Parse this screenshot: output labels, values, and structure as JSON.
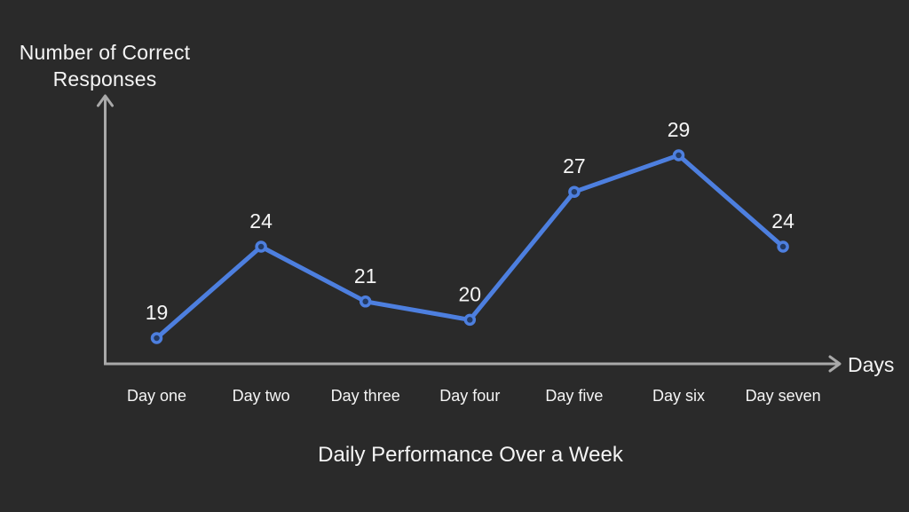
{
  "colors": {
    "background": "#2a2a2a",
    "axis": "#a9a9a9",
    "line": "#4d7fdf",
    "marker_fill": "#233a63",
    "text": "#f5f5f5"
  },
  "chart_data": {
    "type": "line",
    "title": "Daily Performance Over a Week",
    "xlabel": "Days",
    "ylabel": "Number of Correct Responses",
    "categories": [
      "Day one",
      "Day two",
      "Day three",
      "Day four",
      "Day five",
      "Day six",
      "Day seven"
    ],
    "values": [
      19,
      24,
      21,
      20,
      27,
      29,
      24
    ],
    "data_labels": true,
    "legend": "none",
    "grid": false,
    "axis_tick_labels": "none",
    "axis_arrows": true
  }
}
